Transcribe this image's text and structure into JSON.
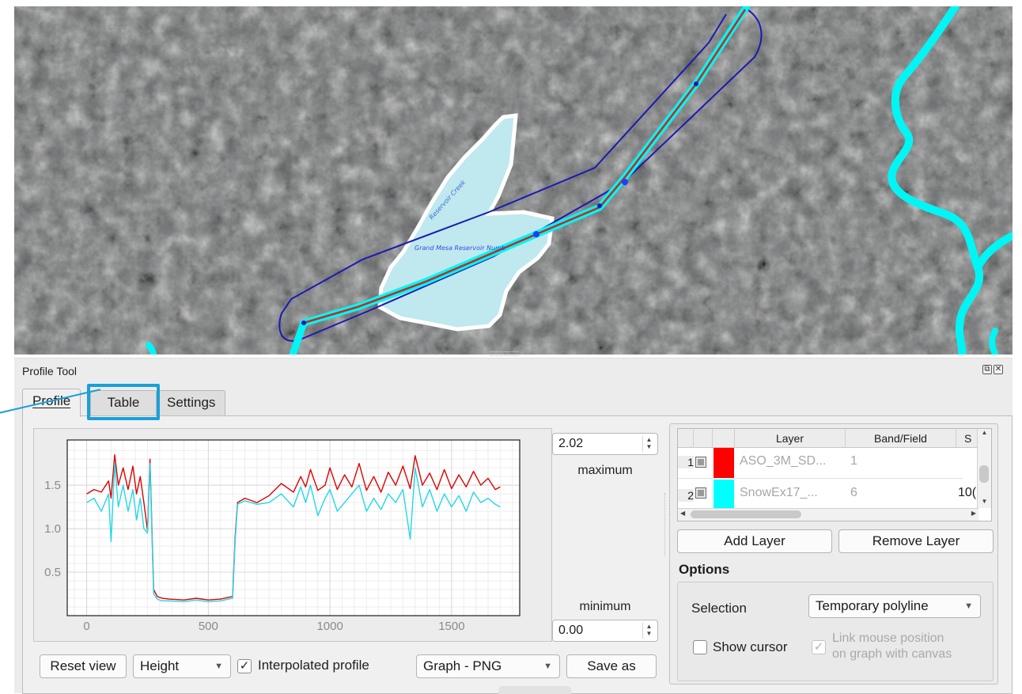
{
  "dock": {
    "title": "Profile Tool",
    "float_icon": "float-icon",
    "close_icon": "close-icon"
  },
  "tabs": [
    {
      "label": "Profile",
      "active": true
    },
    {
      "label": "Table",
      "active": false,
      "highlighted": true
    },
    {
      "label": "Settings",
      "active": false
    }
  ],
  "range": {
    "maximum_value": "2.02",
    "maximum_label": "maximum",
    "minimum_value": "0.00",
    "minimum_label": "minimum"
  },
  "controls": {
    "reset_view": "Reset view",
    "plot_type": "Height",
    "interpolated_label": "Interpolated profile",
    "interpolated_checked": true,
    "export_format": "Graph - PNG",
    "save_as": "Save as"
  },
  "layers_table": {
    "headers": [
      "",
      "",
      "",
      "Layer",
      "Band/Field",
      "S"
    ],
    "rows": [
      {
        "num": "1",
        "color": "#ff0000",
        "layer": "ASO_3M_SD...",
        "band": "1",
        "extra": ""
      },
      {
        "num": "2",
        "color": "#00ffff",
        "layer": "SnowEx17_...",
        "band": "6",
        "extra": "10("
      }
    ]
  },
  "layer_buttons": {
    "add": "Add Layer",
    "remove": "Remove Layer"
  },
  "options": {
    "title": "Options",
    "selection_label": "Selection",
    "selection_value": "Temporary polyline",
    "show_cursor_label": "Show cursor",
    "show_cursor_checked": false,
    "link_label_line1": "Link mouse position",
    "link_label_line2": "on graph with canvas",
    "link_checked": true,
    "link_enabled": false
  },
  "map": {
    "lake_labels": [
      "Reservoir Creek",
      "Grand Mesa Reservoir Numb"
    ],
    "colors": {
      "lake": "#bfe8ef",
      "buffer": "#1a1ab4",
      "profile_line": "#c8281c",
      "stream": "#00f5f5"
    }
  },
  "chart_data": {
    "type": "line",
    "xlim": [
      -80,
      1780
    ],
    "ylim": [
      0,
      2.02
    ],
    "x_ticks": [
      "0",
      "500",
      "1000",
      "1500"
    ],
    "y_ticks": [
      "0.5",
      "1.0",
      "1.5"
    ],
    "grid": true,
    "series": [
      {
        "color": "#e00000",
        "x": [
          0,
          30,
          60,
          90,
          100,
          115,
          130,
          150,
          170,
          190,
          205,
          220,
          235,
          250,
          260,
          275,
          290,
          310,
          340,
          400,
          450,
          500,
          550,
          600,
          610,
          620,
          650,
          700,
          750,
          800,
          850,
          880,
          900,
          920,
          950,
          980,
          1000,
          1030,
          1060,
          1090,
          1120,
          1150,
          1180,
          1210,
          1240,
          1270,
          1300,
          1330,
          1350,
          1380,
          1410,
          1440,
          1470,
          1500,
          1530,
          1560,
          1590,
          1620,
          1650,
          1680,
          1700
        ],
        "y": [
          1.4,
          1.45,
          1.42,
          1.55,
          1.35,
          1.85,
          1.5,
          1.7,
          1.45,
          1.72,
          1.4,
          1.6,
          1.3,
          0.98,
          1.8,
          0.3,
          0.22,
          0.2,
          0.19,
          0.18,
          0.2,
          0.18,
          0.19,
          0.22,
          0.9,
          1.3,
          1.35,
          1.3,
          1.38,
          1.52,
          1.42,
          1.6,
          1.48,
          1.68,
          1.44,
          1.5,
          1.7,
          1.45,
          1.62,
          1.48,
          1.75,
          1.44,
          1.6,
          1.42,
          1.65,
          1.5,
          1.72,
          1.46,
          1.84,
          1.5,
          1.64,
          1.45,
          1.68,
          1.46,
          1.62,
          1.48,
          1.66,
          1.5,
          1.58,
          1.45,
          1.48
        ]
      },
      {
        "color": "#22d8e6",
        "x": [
          0,
          30,
          60,
          90,
          100,
          115,
          130,
          150,
          170,
          190,
          205,
          220,
          235,
          250,
          260,
          275,
          290,
          310,
          340,
          400,
          450,
          500,
          550,
          600,
          610,
          620,
          650,
          700,
          750,
          800,
          850,
          880,
          900,
          920,
          950,
          980,
          1000,
          1030,
          1060,
          1090,
          1120,
          1150,
          1180,
          1210,
          1240,
          1270,
          1300,
          1330,
          1350,
          1380,
          1410,
          1440,
          1470,
          1500,
          1530,
          1560,
          1590,
          1620,
          1650,
          1680,
          1700
        ],
        "y": [
          1.3,
          1.35,
          1.2,
          1.4,
          0.85,
          1.75,
          1.25,
          1.5,
          1.2,
          1.45,
          1.1,
          1.35,
          1.0,
          0.95,
          1.75,
          0.25,
          0.19,
          0.17,
          0.17,
          0.16,
          0.18,
          0.16,
          0.17,
          0.2,
          0.85,
          1.28,
          1.32,
          1.28,
          1.3,
          1.4,
          1.25,
          1.48,
          1.3,
          1.5,
          1.15,
          1.35,
          1.45,
          1.2,
          1.3,
          1.4,
          1.5,
          1.2,
          1.35,
          1.22,
          1.4,
          1.3,
          1.45,
          0.88,
          1.7,
          1.25,
          1.45,
          1.2,
          1.4,
          1.25,
          1.38,
          1.2,
          1.42,
          1.3,
          1.35,
          1.28,
          1.25
        ]
      }
    ]
  }
}
